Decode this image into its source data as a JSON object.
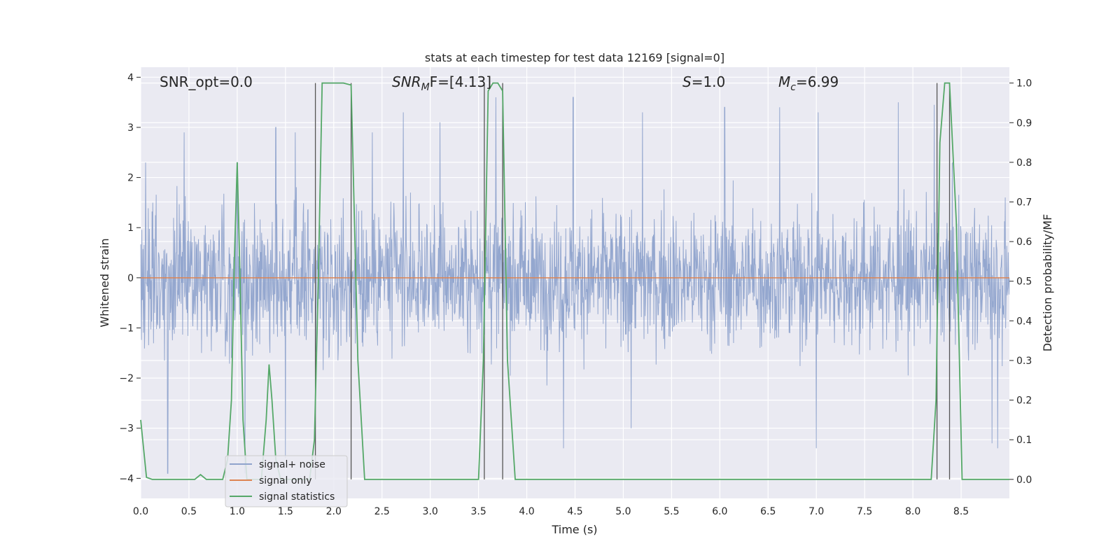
{
  "chart_data": {
    "type": "line",
    "title": "stats at each timestep for test data 12169 [signal=0]",
    "xlabel": "Time (s)",
    "ylabel": "Whitened strain",
    "y2label": "Detection probability/MF",
    "xlim": [
      0.0,
      9.0
    ],
    "ylim": [
      -4.4,
      4.2
    ],
    "y2lim": [
      -0.048,
      1.04
    ],
    "grid": true,
    "legend_position": "lower-left",
    "xticks": [
      "0.0",
      "0.5",
      "1.0",
      "1.5",
      "2.0",
      "2.5",
      "3.0",
      "3.5",
      "4.0",
      "4.5",
      "5.0",
      "5.5",
      "6.0",
      "6.5",
      "7.0",
      "7.5",
      "8.0",
      "8.5"
    ],
    "yticks": [
      "−4",
      "−3",
      "−2",
      "−1",
      "0",
      "1",
      "2",
      "3",
      "4"
    ],
    "y2ticks": [
      "0.0",
      "0.1",
      "0.2",
      "0.3",
      "0.4",
      "0.5",
      "0.6",
      "0.7",
      "0.8",
      "0.9",
      "1.0"
    ],
    "annotations": {
      "snr_opt": "SNR_opt=0.0",
      "snr_mf_base": "SNR",
      "snr_mf_sub": "M",
      "snr_mf_tail": "F=[4.13]",
      "s_name": "S",
      "s_value": "=1.0",
      "mc_name": "M",
      "mc_sub": "c",
      "mc_value": "=6.99"
    },
    "vlines_x": [
      1.81,
      2.18,
      3.56,
      3.75,
      8.25,
      8.38
    ],
    "series": [
      {
        "name": "signal+ noise",
        "color": "#8fa3cc",
        "axis": "left",
        "noise_amplitude": 1.0,
        "peak_values": [
          {
            "x": 0.05,
            "y": 2.3
          },
          {
            "x": 0.28,
            "y": 3.3
          },
          {
            "x": 0.45,
            "y": 2.9
          },
          {
            "x": 1.0,
            "y": 2.3
          },
          {
            "x": 1.4,
            "y": 3.0
          },
          {
            "x": 1.6,
            "y": 2.9
          },
          {
            "x": 2.4,
            "y": 2.9
          },
          {
            "x": 2.72,
            "y": 3.3
          },
          {
            "x": 3.1,
            "y": 3.1
          },
          {
            "x": 3.68,
            "y": 3.6
          },
          {
            "x": 4.48,
            "y": 3.6
          },
          {
            "x": 5.2,
            "y": 3.3
          },
          {
            "x": 6.05,
            "y": 3.4
          },
          {
            "x": 6.62,
            "y": 3.4
          },
          {
            "x": 7.02,
            "y": 3.3
          },
          {
            "x": 7.85,
            "y": 3.5
          },
          {
            "x": 8.22,
            "y": 3.45
          }
        ],
        "trough_values": [
          {
            "x": 0.28,
            "y": -3.9
          },
          {
            "x": 1.08,
            "y": -3.9
          },
          {
            "x": 1.5,
            "y": -3.6
          },
          {
            "x": 4.38,
            "y": -3.4
          },
          {
            "x": 5.08,
            "y": -3.0
          },
          {
            "x": 7.0,
            "y": -3.4
          },
          {
            "x": 8.82,
            "y": -3.3
          },
          {
            "x": 8.88,
            "y": -3.4
          }
        ]
      },
      {
        "name": "signal only",
        "color": "#dd8452",
        "axis": "left",
        "x": [
          0.0,
          9.0
        ],
        "y": [
          0.0,
          0.0
        ]
      },
      {
        "name": "signal statistics",
        "color": "#55a868",
        "axis": "right",
        "x": [
          0.0,
          0.06,
          0.12,
          0.2,
          0.3,
          0.4,
          0.5,
          0.56,
          0.62,
          0.68,
          0.75,
          0.85,
          0.9,
          0.94,
          0.97,
          1.0,
          1.03,
          1.06,
          1.1,
          1.15,
          1.2,
          1.25,
          1.3,
          1.33,
          1.36,
          1.4,
          1.45,
          1.5,
          1.55,
          1.6,
          1.65,
          1.7,
          1.75,
          1.8,
          1.84,
          1.88,
          1.93,
          2.0,
          2.1,
          2.18,
          2.25,
          2.32,
          2.4,
          2.6,
          2.8,
          3.0,
          3.2,
          3.4,
          3.5,
          3.55,
          3.6,
          3.65,
          3.7,
          3.75,
          3.8,
          3.88,
          3.95,
          4.1,
          4.5,
          5.0,
          5.5,
          6.0,
          6.5,
          7.0,
          7.5,
          8.0,
          8.19,
          8.24,
          8.28,
          8.33,
          8.38,
          8.45,
          8.51,
          8.6,
          8.8,
          9.0
        ],
        "y": [
          0.15,
          0.005,
          0.0,
          0.0,
          0.0,
          0.0,
          0.0,
          0.0,
          0.012,
          0.0,
          0.0,
          0.0,
          0.05,
          0.2,
          0.55,
          0.8,
          0.5,
          0.15,
          0.0,
          0.0,
          0.0,
          0.0,
          0.15,
          0.29,
          0.2,
          0.05,
          0.0,
          0.0,
          0.0,
          0.0,
          0.0,
          0.0,
          0.0,
          0.1,
          0.5,
          1.0,
          1.0,
          1.0,
          1.0,
          0.995,
          0.3,
          0.0,
          0.0,
          0.0,
          0.0,
          0.0,
          0.0,
          0.0,
          0.0,
          0.3,
          0.98,
          1.0,
          1.0,
          0.98,
          0.3,
          0.0,
          0.0,
          0.0,
          0.0,
          0.0,
          0.0,
          0.0,
          0.0,
          0.0,
          0.0,
          0.0,
          0.0,
          0.2,
          0.85,
          1.0,
          1.0,
          0.65,
          0.0,
          0.0,
          0.0,
          0.0
        ]
      }
    ]
  }
}
